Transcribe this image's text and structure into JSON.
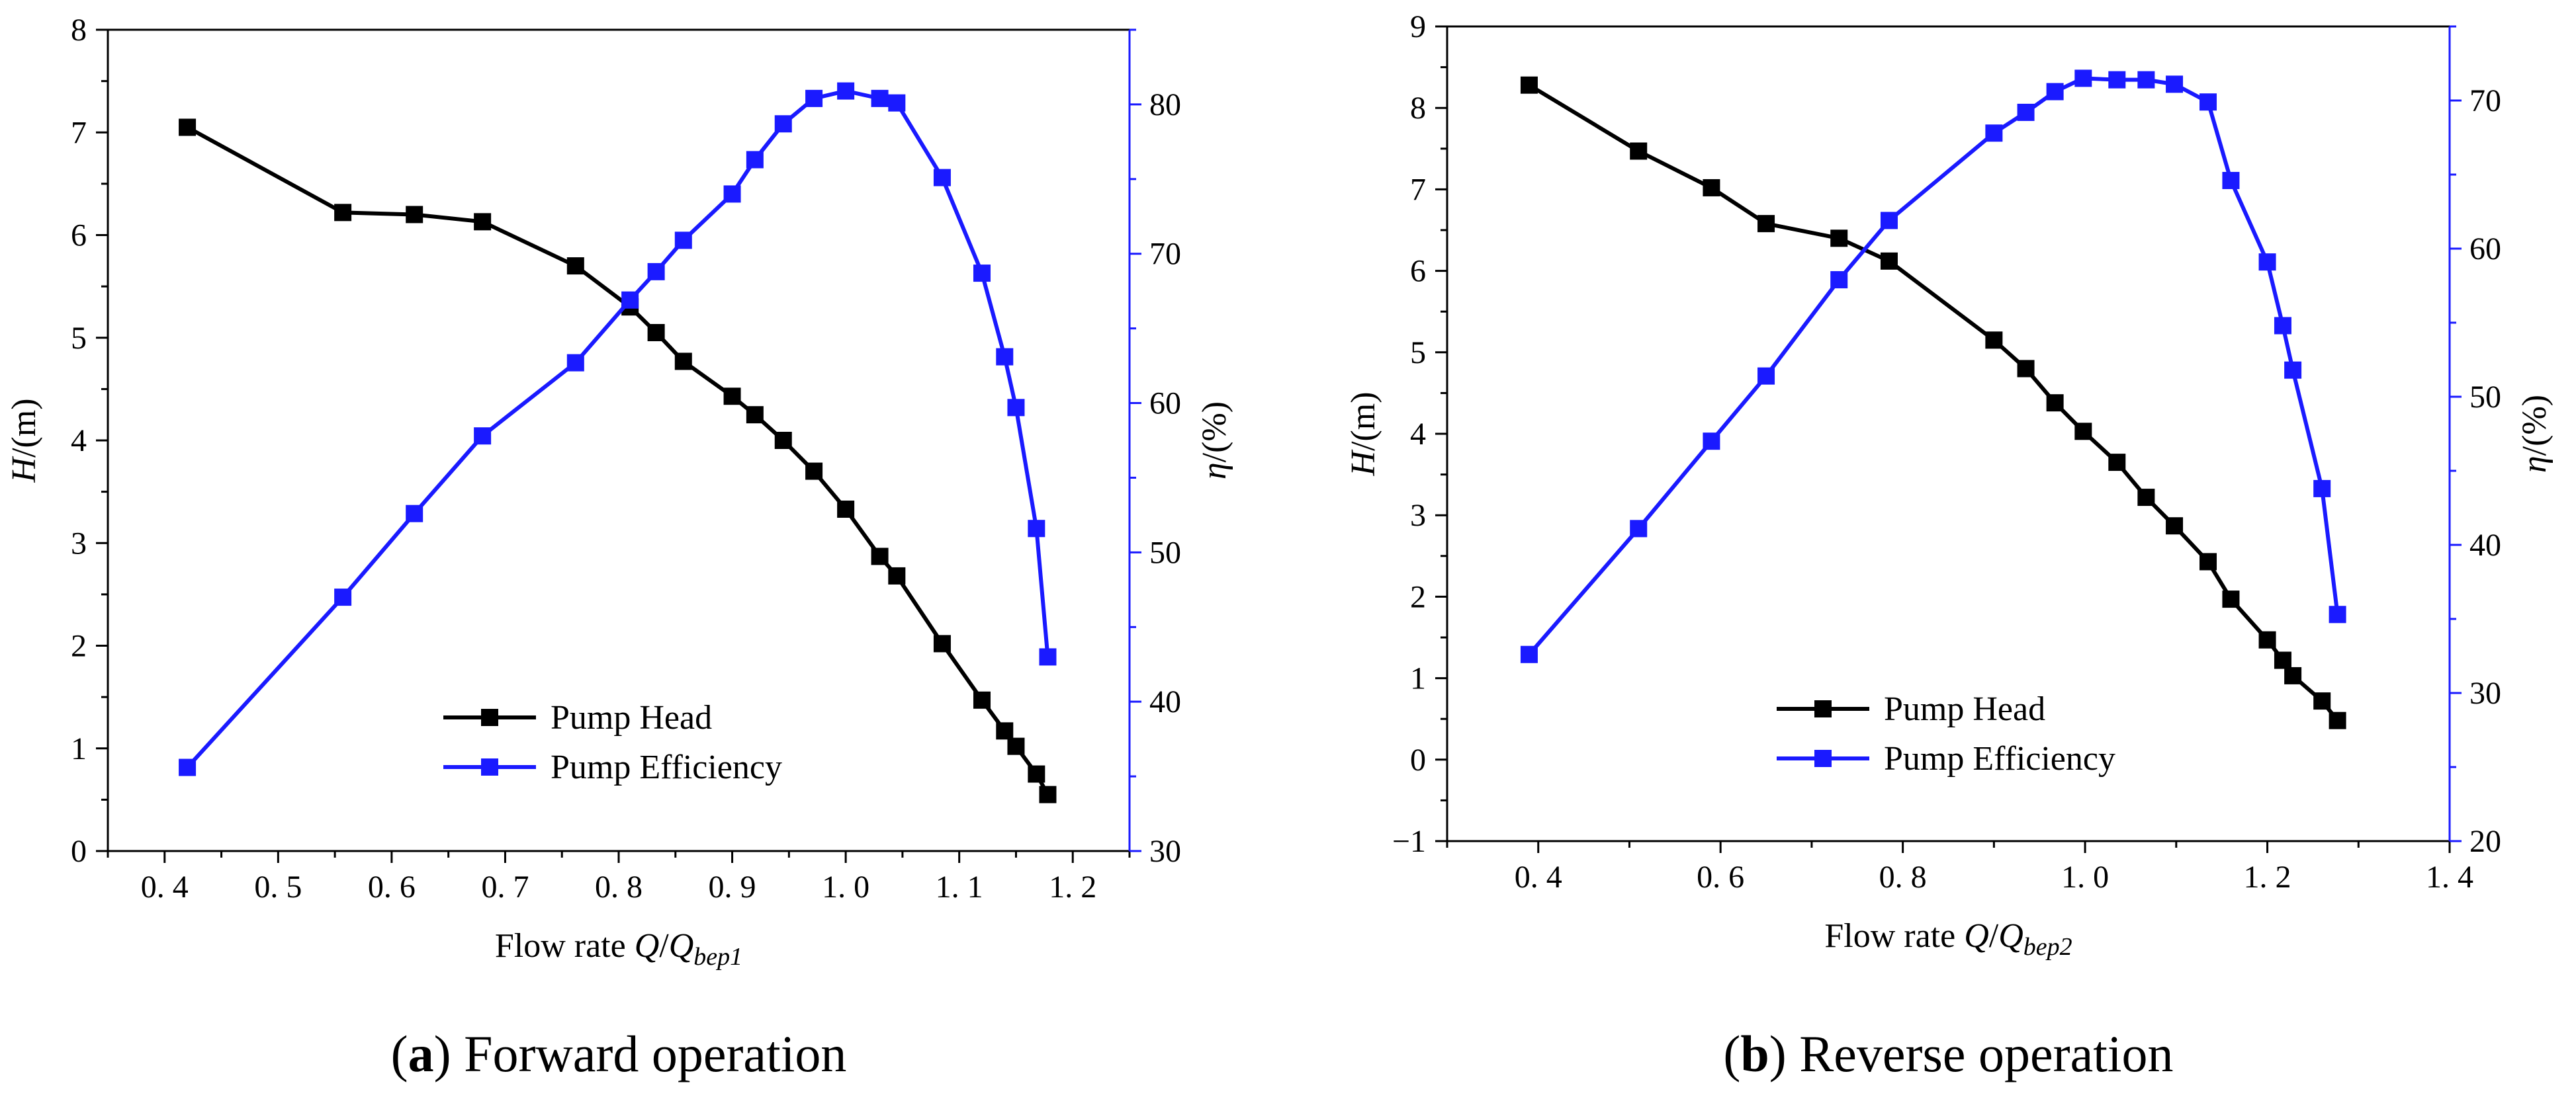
{
  "colors": {
    "head": "#000000",
    "efficiency": "#1a1aff",
    "axis": "#000000",
    "background": "#ffffff"
  },
  "legend": {
    "head_label": "Pump Head",
    "efficiency_label": "Pump Efficiency"
  },
  "chart_data": [
    {
      "type": "line",
      "caption": {
        "letter": "a",
        "open": "(",
        "close": ")",
        "text": " Forward operation"
      },
      "xlabel": {
        "prefix": "Flow rate ",
        "var": "Q",
        "slash": "/",
        "denom": "Q",
        "sub": "bep1"
      },
      "ylabel_left": {
        "var": "H",
        "rest": "/(m)"
      },
      "ylabel_right": {
        "var": "η",
        "rest": "/(%)"
      },
      "xlim": [
        0.35,
        1.25
      ],
      "xticks": [
        0.4,
        0.5,
        0.6,
        0.7,
        0.8,
        0.9,
        1.0,
        1.1,
        1.2
      ],
      "xtick_labels": [
        "0. 4",
        "0. 5",
        "0. 6",
        "0. 7",
        "0. 8",
        "0. 9",
        "1. 0",
        "1. 1",
        "1. 2"
      ],
      "ylim_left": [
        0,
        8
      ],
      "yticks_left": [
        0,
        1,
        2,
        3,
        4,
        5,
        6,
        7,
        8
      ],
      "ytick_labels_left": [
        "0",
        "1",
        "2",
        "3",
        "4",
        "5",
        "6",
        "7",
        "8"
      ],
      "ylim_right": [
        30,
        85
      ],
      "yticks_right": [
        30,
        40,
        50,
        60,
        70,
        80
      ],
      "ytick_labels_right": [
        "30",
        "40",
        "50",
        "60",
        "70",
        "80"
      ],
      "legend_position": "bottom-center",
      "series": [
        {
          "name": "Pump Head",
          "axis": "left",
          "x": [
            0.42,
            0.557,
            0.62,
            0.68,
            0.762,
            0.81,
            0.833,
            0.857,
            0.9,
            0.92,
            0.945,
            0.972,
            1.0,
            1.03,
            1.045,
            1.085,
            1.12,
            1.14,
            1.15,
            1.168,
            1.178
          ],
          "y": [
            7.05,
            6.22,
            6.2,
            6.13,
            5.7,
            5.3,
            5.05,
            4.77,
            4.43,
            4.25,
            4.0,
            3.7,
            3.33,
            2.87,
            2.68,
            2.02,
            1.47,
            1.17,
            1.02,
            0.75,
            0.55
          ]
        },
        {
          "name": "Pump Efficiency",
          "axis": "right",
          "x": [
            0.42,
            0.557,
            0.62,
            0.68,
            0.762,
            0.81,
            0.833,
            0.857,
            0.9,
            0.92,
            0.945,
            0.972,
            1.0,
            1.03,
            1.045,
            1.085,
            1.12,
            1.14,
            1.15,
            1.168,
            1.178
          ],
          "y": [
            35.6,
            47.0,
            52.6,
            57.8,
            62.7,
            66.9,
            68.8,
            70.9,
            74.0,
            76.3,
            78.7,
            80.4,
            80.9,
            80.4,
            80.1,
            75.1,
            68.7,
            63.1,
            59.7,
            51.6,
            43.0
          ]
        }
      ]
    },
    {
      "type": "line",
      "caption": {
        "letter": "b",
        "open": "(",
        "close": ")",
        "text": " Reverse operation"
      },
      "xlabel": {
        "prefix": "Flow rate ",
        "var": "Q",
        "slash": "/",
        "denom": "Q",
        "sub": "bep2"
      },
      "ylabel_left": {
        "var": "H",
        "rest": "/(m)"
      },
      "ylabel_right": {
        "var": "η",
        "rest": "/(%)"
      },
      "xlim": [
        0.3,
        1.4
      ],
      "xticks": [
        0.4,
        0.6,
        0.8,
        1.0,
        1.2,
        1.4
      ],
      "xtick_labels": [
        "0. 4",
        "0. 6",
        "0. 8",
        "1. 0",
        "1. 2",
        "1. 4"
      ],
      "ylim_left": [
        -1,
        9
      ],
      "yticks_left": [
        -1,
        0,
        1,
        2,
        3,
        4,
        5,
        6,
        7,
        8,
        9
      ],
      "ytick_labels_left": [
        "−1",
        "0",
        "1",
        "2",
        "3",
        "4",
        "5",
        "6",
        "7",
        "8",
        "9"
      ],
      "ylim_right": [
        20,
        75
      ],
      "yticks_right": [
        20,
        30,
        40,
        50,
        60,
        70
      ],
      "ytick_labels_right": [
        "20",
        "30",
        "40",
        "50",
        "60",
        "70"
      ],
      "legend_position": "bottom-center",
      "series": [
        {
          "name": "Pump Head",
          "axis": "left",
          "x": [
            0.39,
            0.51,
            0.59,
            0.65,
            0.73,
            0.785,
            0.9,
            0.935,
            0.967,
            0.998,
            1.035,
            1.067,
            1.098,
            1.135,
            1.16,
            1.2,
            1.217,
            1.228,
            1.26,
            1.277
          ],
          "y": [
            8.28,
            7.47,
            7.02,
            6.58,
            6.4,
            6.12,
            5.15,
            4.8,
            4.38,
            4.03,
            3.65,
            3.22,
            2.87,
            2.43,
            1.97,
            1.47,
            1.22,
            1.03,
            0.72,
            0.48
          ]
        },
        {
          "name": "Pump Efficiency",
          "axis": "right",
          "x": [
            0.39,
            0.51,
            0.59,
            0.65,
            0.73,
            0.785,
            0.9,
            0.935,
            0.967,
            0.998,
            1.035,
            1.067,
            1.098,
            1.135,
            1.16,
            1.2,
            1.217,
            1.228,
            1.26,
            1.277
          ],
          "y": [
            32.6,
            41.1,
            47.0,
            51.4,
            57.9,
            61.9,
            67.8,
            69.2,
            70.6,
            71.5,
            71.4,
            71.4,
            71.1,
            69.9,
            64.6,
            59.1,
            54.8,
            51.8,
            43.8,
            35.3
          ]
        }
      ]
    }
  ]
}
